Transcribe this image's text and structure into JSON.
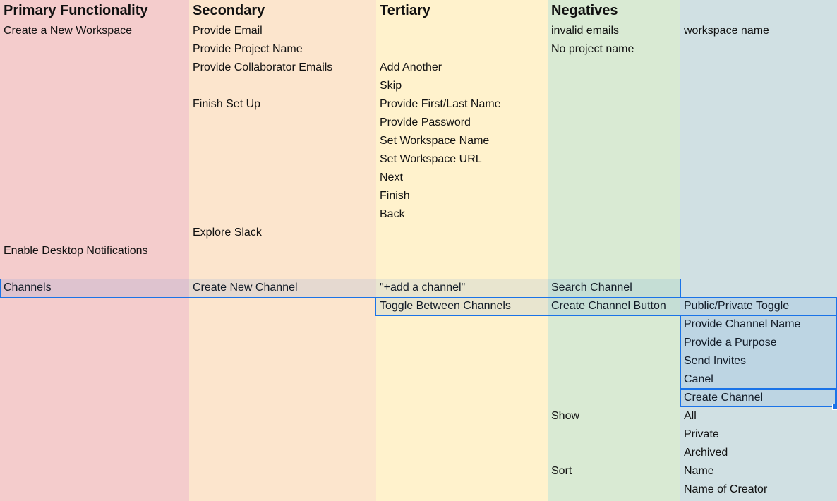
{
  "colors": {
    "col_a": "#f4cccc",
    "col_b": "#fce5cd",
    "col_c": "#fff2cc",
    "col_d": "#d9ead3",
    "col_e": "#d0e0e3",
    "selection": "#1a73e8"
  },
  "headers": [
    "Primary Functionality",
    "Secondary",
    "Tertiary",
    "Negatives",
    ""
  ],
  "rows": [
    [
      "Create a New Workspace",
      "Provide Email",
      "",
      "invalid emails",
      "workspace name"
    ],
    [
      "",
      "Provide Project Name",
      "",
      "No project name",
      ""
    ],
    [
      "",
      "Provide Collaborator Emails",
      "Add Another",
      "",
      ""
    ],
    [
      "",
      "",
      "Skip",
      "",
      ""
    ],
    [
      "",
      "Finish Set Up",
      "Provide First/Last Name",
      "",
      ""
    ],
    [
      "",
      "",
      "Provide Password",
      "",
      ""
    ],
    [
      "",
      "",
      "Set Workspace Name",
      "",
      ""
    ],
    [
      "",
      "",
      "Set Workspace URL",
      "",
      ""
    ],
    [
      "",
      "",
      "Next",
      "",
      ""
    ],
    [
      "",
      "",
      "Finish",
      "",
      ""
    ],
    [
      "",
      "",
      "Back",
      "",
      ""
    ],
    [
      "",
      "Explore Slack",
      "",
      "",
      ""
    ],
    [
      "Enable Desktop Notifications",
      "",
      "",
      "",
      ""
    ],
    [
      "",
      "",
      "",
      "",
      ""
    ],
    [
      "Channels",
      "Create New Channel",
      "\"+add a channel\"",
      "Search Channel",
      ""
    ],
    [
      "",
      "",
      "Toggle Between Channels",
      "Create Channel Button",
      "Public/Private Toggle"
    ],
    [
      "",
      "",
      "",
      "",
      "Provide Channel Name"
    ],
    [
      "",
      "",
      "",
      "",
      "Provide a Purpose"
    ],
    [
      "",
      "",
      "",
      "",
      "Send Invites"
    ],
    [
      "",
      "",
      "",
      "",
      "Canel"
    ],
    [
      "",
      "",
      "",
      "",
      "Create Channel"
    ],
    [
      "",
      "",
      "",
      "Show",
      "All"
    ],
    [
      "",
      "",
      "",
      "",
      "Private"
    ],
    [
      "",
      "",
      "",
      "",
      "Archived"
    ],
    [
      "",
      "",
      "",
      "Sort",
      "Name"
    ],
    [
      "",
      "",
      "",
      "",
      "Name of Creator"
    ]
  ]
}
